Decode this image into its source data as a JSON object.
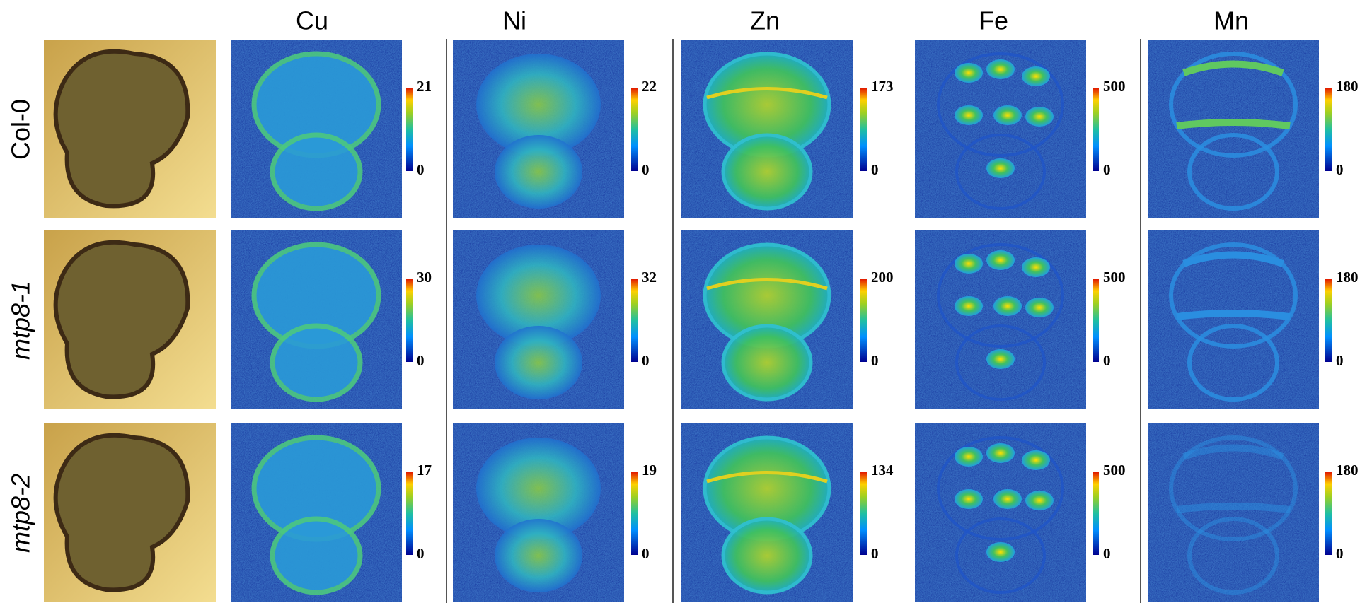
{
  "columns": [
    "Cu",
    "Ni",
    "Zn",
    "Fe",
    "Mn"
  ],
  "rows": [
    {
      "label": "Col-0",
      "scales": [
        {
          "max": 21,
          "min": 0
        },
        {
          "max": 22,
          "min": 0
        },
        {
          "max": 173,
          "min": 0
        },
        {
          "max": 500,
          "min": 0
        },
        {
          "max": 180,
          "min": 0
        }
      ]
    },
    {
      "label": "mtp8-1",
      "scales": [
        {
          "max": 30,
          "min": 0
        },
        {
          "max": 32,
          "min": 0
        },
        {
          "max": 200,
          "min": 0
        },
        {
          "max": 500,
          "min": 0
        },
        {
          "max": 180,
          "min": 0
        }
      ]
    },
    {
      "label": "mtp8-2",
      "scales": [
        {
          "max": 17,
          "min": 0
        },
        {
          "max": 19,
          "min": 0
        },
        {
          "max": 134,
          "min": 0
        },
        {
          "max": 500,
          "min": 0
        },
        {
          "max": 180,
          "min": 0
        }
      ]
    }
  ]
}
